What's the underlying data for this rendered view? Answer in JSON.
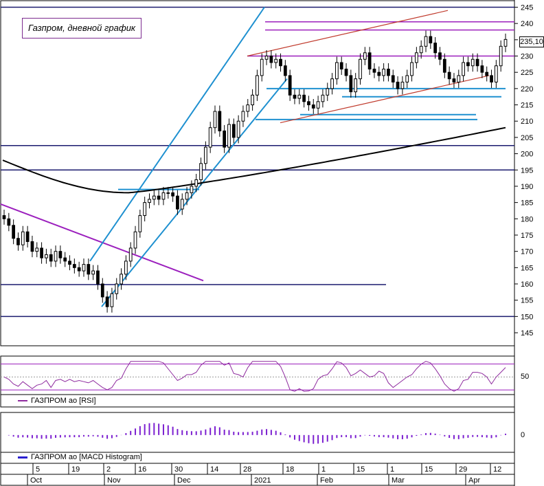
{
  "title": "Газпром, дневной график",
  "last_price_label": "235,10",
  "rsi_legend": "ГАЗПРОМ ao [RSI]",
  "macd_legend": "ГАЗПРОМ ao [MACD Histogram]",
  "rsi_tick": "50",
  "macd_tick": "0",
  "colors": {
    "candle": "#000000",
    "moving_average": "#000000",
    "trend_blue": "#1e90d0",
    "trend_purple": "#9b1fbd",
    "trend_red": "#c0392b",
    "level_navy": "#1a1a6e",
    "rsi": "#8e2a9e",
    "macd": "#7b1fd0"
  },
  "chart_data": [
    {
      "type": "candlestick",
      "title": "Газпром, дневной график",
      "ylim": [
        141,
        247
      ],
      "y_ticks": [
        145,
        150,
        155,
        160,
        165,
        170,
        175,
        180,
        185,
        190,
        195,
        200,
        205,
        210,
        215,
        220,
        225,
        230,
        235,
        240,
        245
      ],
      "last_price": 235.1,
      "closes": [
        180,
        178,
        174,
        172,
        176,
        173,
        170,
        171,
        168,
        169,
        167,
        170,
        168,
        167,
        166,
        165,
        164,
        166,
        163,
        164,
        160,
        156,
        153,
        157,
        160,
        163,
        167,
        171,
        176,
        181,
        185,
        186,
        187,
        186,
        188,
        188,
        187,
        183,
        186,
        188,
        190,
        192,
        197,
        202,
        208,
        213,
        207,
        202,
        209,
        205,
        210,
        213,
        215,
        218,
        224,
        229,
        230,
        228,
        229,
        227,
        224,
        218,
        217,
        218,
        216,
        215,
        214,
        216,
        218,
        220,
        223,
        228,
        226,
        224,
        219,
        223,
        229,
        231,
        226,
        225,
        224,
        226,
        224,
        222,
        220,
        222,
        224,
        228,
        231,
        233,
        236,
        234,
        231,
        229,
        225,
        223,
        222,
        224,
        228,
        227,
        229,
        227,
        225,
        224,
        222,
        227,
        233,
        235.1
      ],
      "moving_average": {
        "start": 198.0,
        "min": 188.0,
        "end": 208.0
      },
      "horizontal_levels": [
        {
          "y": 245,
          "color": "navy"
        },
        {
          "y": 240.5,
          "color": "purple"
        },
        {
          "y": 238,
          "color": "purple"
        },
        {
          "y": 230,
          "color": "purple"
        },
        {
          "y": 220,
          "color": "blue"
        },
        {
          "y": 217.5,
          "color": "blue"
        },
        {
          "y": 212,
          "color": "blue"
        },
        {
          "y": 210.5,
          "color": "blue"
        },
        {
          "y": 202.5,
          "color": "navy"
        },
        {
          "y": 195,
          "color": "navy"
        },
        {
          "y": 189,
          "color": "blue"
        },
        {
          "y": 159.8,
          "color": "navy"
        },
        {
          "y": 150,
          "color": "navy"
        }
      ]
    },
    {
      "type": "line",
      "title": "ГАЗПРОМ ao [RSI]",
      "reference_level": 50,
      "ylim": [
        25,
        80
      ]
    },
    {
      "type": "bar",
      "title": "ГАЗПРОМ ao [MACD Histogram]",
      "ylim": [
        -6,
        8
      ]
    }
  ],
  "x_axis": {
    "days": [
      "5",
      "19",
      "2",
      "16",
      "30",
      "14",
      "28",
      "18",
      "1",
      "15",
      "1",
      "15",
      "29",
      "12"
    ],
    "months": [
      "Oct",
      "Nov",
      "Dec",
      "2021",
      "Feb",
      "Mar",
      "Apr"
    ]
  }
}
